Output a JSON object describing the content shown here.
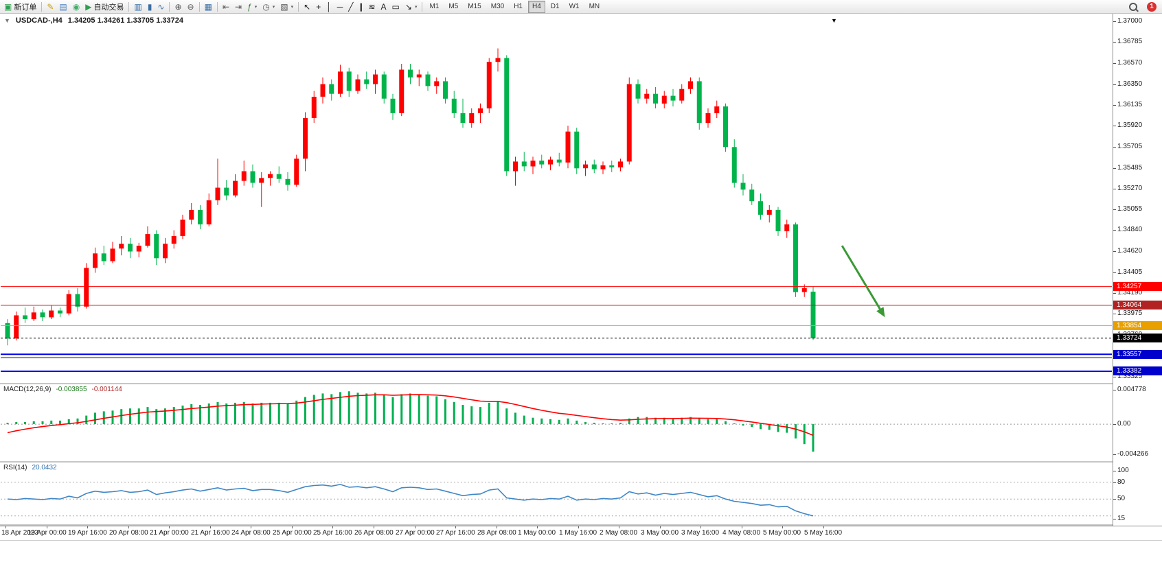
{
  "toolbar": {
    "groups": [
      {
        "items": [
          {
            "name": "new-order-button",
            "glyph": "▣",
            "glyph_color": "#2e9e4f",
            "label": "新订单"
          }
        ]
      },
      {
        "items": [
          {
            "name": "metaeditor-button",
            "glyph": "✎",
            "glyph_color": "#c8a400"
          },
          {
            "name": "data-window-button",
            "glyph": "▤",
            "glyph_color": "#4a7fc0"
          },
          {
            "name": "navigator-button",
            "glyph": "◉",
            "glyph_color": "#3fae6a"
          },
          {
            "name": "autotrading-button",
            "glyph": "▶",
            "glyph_color": "#2e9e4f",
            "label": "自动交易"
          }
        ]
      },
      {
        "items": [
          {
            "name": "bar-chart-button",
            "glyph": "▥",
            "glyph_color": "#3a6ea5"
          },
          {
            "name": "candlestick-chart-button",
            "glyph": "▮",
            "glyph_color": "#3a6ea5"
          },
          {
            "name": "line-chart-button",
            "glyph": "∿",
            "glyph_color": "#3a6ea5"
          }
        ]
      },
      {
        "items": [
          {
            "name": "zoom-in-button",
            "glyph": "⊕",
            "glyph_color": "#555555"
          },
          {
            "name": "zoom-out-button",
            "glyph": "⊖",
            "glyph_color": "#555555"
          }
        ]
      },
      {
        "items": [
          {
            "name": "tile-windows-button",
            "glyph": "▦",
            "glyph_color": "#3a6ea5"
          }
        ]
      },
      {
        "items": [
          {
            "name": "auto-scroll-button",
            "glyph": "⇤",
            "glyph_color": "#555555"
          },
          {
            "name": "chart-shift-button",
            "glyph": "⇥",
            "glyph_color": "#555555"
          },
          {
            "name": "indicators-button",
            "glyph": "ƒ",
            "glyph_color": "#2e7d32",
            "dropdown": true
          },
          {
            "name": "periods-button",
            "glyph": "◷",
            "glyph_color": "#555555",
            "dropdown": true
          },
          {
            "name": "templates-button",
            "glyph": "▧",
            "glyph_color": "#555555",
            "dropdown": true
          }
        ]
      },
      {
        "items": [
          {
            "name": "cursor-button",
            "glyph": "↖",
            "glyph_color": "#222222"
          },
          {
            "name": "crosshair-button",
            "glyph": "+",
            "glyph_color": "#222222"
          },
          {
            "name": "vertical-line-button",
            "glyph": "│",
            "glyph_color": "#222222"
          },
          {
            "name": "horizontal-line-button",
            "glyph": "─",
            "glyph_color": "#222222"
          },
          {
            "name": "trendline-button",
            "glyph": "╱",
            "glyph_color": "#222222"
          },
          {
            "name": "channel-button",
            "glyph": "∥",
            "glyph_color": "#222222"
          },
          {
            "name": "fibonacci-button",
            "glyph": "≋",
            "glyph_color": "#222222"
          },
          {
            "name": "text-button",
            "glyph": "A",
            "glyph_color": "#222222"
          },
          {
            "name": "text-label-button",
            "glyph": "▭",
            "glyph_color": "#222222"
          },
          {
            "name": "arrows-button",
            "glyph": "↘",
            "glyph_color": "#222222",
            "dropdown": true
          }
        ]
      }
    ],
    "timeframes": {
      "items": [
        "M1",
        "M5",
        "M15",
        "M30",
        "H1",
        "H4",
        "D1",
        "W1",
        "MN"
      ],
      "active": "H4"
    },
    "badge": "1"
  },
  "chart": {
    "symbol_label": "USDCAD-,H4",
    "ohlc_label": "1.34205 1.34261 1.33705 1.33724",
    "open": "1.34205",
    "high": "1.34261",
    "low": "1.33705",
    "close": "1.33724"
  },
  "chart_data": {
    "type": "candlestick",
    "symbol": "USDCAD",
    "timeframe": "H4",
    "colors": {
      "up": "#ff0000",
      "down": "#00b44c"
    },
    "price_axis": {
      "min": 1.33261,
      "max": 1.37078,
      "ticks": [
        "1.37000",
        "1.36785",
        "1.36570",
        "1.36350",
        "1.36135",
        "1.35920",
        "1.35705",
        "1.35485",
        "1.35270",
        "1.35055",
        "1.34840",
        "1.34620",
        "1.34405",
        "1.34190",
        "1.33975",
        "1.33760",
        "1.33545",
        "1.33325"
      ]
    },
    "time_labels": [
      "18 Apr 2023",
      "19 Apr 00:00",
      "19 Apr 16:00",
      "20 Apr 08:00",
      "21 Apr 00:00",
      "21 Apr 16:00",
      "24 Apr 08:00",
      "25 Apr 00:00",
      "25 Apr 16:00",
      "26 Apr 08:00",
      "27 Apr 00:00",
      "27 Apr 16:00",
      "28 Apr 08:00",
      "1 May 00:00",
      "1 May 16:00",
      "2 May 08:00",
      "3 May 00:00",
      "3 May 16:00",
      "4 May 08:00",
      "5 May 00:00",
      "5 May 16:00"
    ],
    "candles": [
      [
        1.3388,
        1.3392,
        1.3365,
        1.3372
      ],
      [
        1.3372,
        1.34,
        1.337,
        1.3396
      ],
      [
        1.3396,
        1.3404,
        1.3388,
        1.3392
      ],
      [
        1.3392,
        1.3405,
        1.339,
        1.3399
      ],
      [
        1.3399,
        1.3402,
        1.339,
        1.3394
      ],
      [
        1.3394,
        1.3406,
        1.3392,
        1.3401
      ],
      [
        1.3401,
        1.3404,
        1.3394,
        1.3398
      ],
      [
        1.3398,
        1.3422,
        1.3396,
        1.3418
      ],
      [
        1.3418,
        1.3424,
        1.34,
        1.3405
      ],
      [
        1.3405,
        1.345,
        1.3403,
        1.3445
      ],
      [
        1.3445,
        1.3466,
        1.344,
        1.346
      ],
      [
        1.346,
        1.3468,
        1.3448,
        1.3452
      ],
      [
        1.3452,
        1.3472,
        1.345,
        1.3465
      ],
      [
        1.3465,
        1.3478,
        1.3458,
        1.347
      ],
      [
        1.347,
        1.3476,
        1.3455,
        1.3462
      ],
      [
        1.3462,
        1.3471,
        1.3456,
        1.3468
      ],
      [
        1.3468,
        1.3488,
        1.3466,
        1.348
      ],
      [
        1.348,
        1.3484,
        1.3448,
        1.3455
      ],
      [
        1.3455,
        1.3476,
        1.345,
        1.347
      ],
      [
        1.347,
        1.3484,
        1.3465,
        1.3478
      ],
      [
        1.3478,
        1.35,
        1.3475,
        1.3495
      ],
      [
        1.3495,
        1.3512,
        1.349,
        1.3505
      ],
      [
        1.3505,
        1.351,
        1.3485,
        1.349
      ],
      [
        1.349,
        1.3522,
        1.3488,
        1.3515
      ],
      [
        1.3515,
        1.3558,
        1.351,
        1.3528
      ],
      [
        1.3528,
        1.3536,
        1.3515,
        1.352
      ],
      [
        1.352,
        1.3542,
        1.3518,
        1.3535
      ],
      [
        1.3535,
        1.3556,
        1.353,
        1.3545
      ],
      [
        1.3545,
        1.3552,
        1.3528,
        1.3533
      ],
      [
        1.3533,
        1.3544,
        1.3508,
        1.3538
      ],
      [
        1.3538,
        1.3545,
        1.353,
        1.3542
      ],
      [
        1.3542,
        1.355,
        1.3533,
        1.3537
      ],
      [
        1.3537,
        1.3544,
        1.3525,
        1.3531
      ],
      [
        1.3531,
        1.3562,
        1.3529,
        1.3558
      ],
      [
        1.3558,
        1.3606,
        1.3545,
        1.36
      ],
      [
        1.36,
        1.3628,
        1.3595,
        1.3622
      ],
      [
        1.3622,
        1.3642,
        1.3615,
        1.3635
      ],
      [
        1.3635,
        1.364,
        1.3618,
        1.3625
      ],
      [
        1.3625,
        1.3655,
        1.3622,
        1.3648
      ],
      [
        1.3648,
        1.3652,
        1.3622,
        1.3628
      ],
      [
        1.3628,
        1.3645,
        1.3625,
        1.364
      ],
      [
        1.364,
        1.3648,
        1.363,
        1.3635
      ],
      [
        1.3635,
        1.365,
        1.3625,
        1.3645
      ],
      [
        1.3645,
        1.3648,
        1.3615,
        1.362
      ],
      [
        1.362,
        1.3625,
        1.3598,
        1.3605
      ],
      [
        1.3605,
        1.3656,
        1.3602,
        1.365
      ],
      [
        1.365,
        1.3656,
        1.3635,
        1.3642
      ],
      [
        1.3642,
        1.365,
        1.3633,
        1.3645
      ],
      [
        1.3645,
        1.3648,
        1.3628,
        1.3633
      ],
      [
        1.3633,
        1.3642,
        1.3625,
        1.3638
      ],
      [
        1.3638,
        1.3642,
        1.3615,
        1.362
      ],
      [
        1.362,
        1.3628,
        1.36,
        1.3605
      ],
      [
        1.3605,
        1.362,
        1.359,
        1.3595
      ],
      [
        1.3595,
        1.361,
        1.359,
        1.3605
      ],
      [
        1.3605,
        1.3615,
        1.3595,
        1.361
      ],
      [
        1.361,
        1.3662,
        1.3605,
        1.3658
      ],
      [
        1.3658,
        1.3672,
        1.3648,
        1.3662
      ],
      [
        1.3662,
        1.3665,
        1.354,
        1.3545
      ],
      [
        1.3545,
        1.356,
        1.353,
        1.3555
      ],
      [
        1.3555,
        1.3565,
        1.3545,
        1.355
      ],
      [
        1.355,
        1.356,
        1.3542,
        1.3556
      ],
      [
        1.3556,
        1.3562,
        1.3548,
        1.3552
      ],
      [
        1.3552,
        1.356,
        1.3546,
        1.3557
      ],
      [
        1.3557,
        1.3564,
        1.355,
        1.3554
      ],
      [
        1.3554,
        1.3592,
        1.3548,
        1.3586
      ],
      [
        1.3586,
        1.359,
        1.3542,
        1.3548
      ],
      [
        1.3548,
        1.3556,
        1.354,
        1.3552
      ],
      [
        1.3552,
        1.3557,
        1.3543,
        1.3547
      ],
      [
        1.3547,
        1.3555,
        1.3542,
        1.3551
      ],
      [
        1.3551,
        1.3556,
        1.3544,
        1.3549
      ],
      [
        1.3549,
        1.3558,
        1.3545,
        1.3555
      ],
      [
        1.3555,
        1.3642,
        1.3552,
        1.3635
      ],
      [
        1.3635,
        1.364,
        1.3615,
        1.362
      ],
      [
        1.362,
        1.363,
        1.3615,
        1.3625
      ],
      [
        1.3625,
        1.3632,
        1.361,
        1.3615
      ],
      [
        1.3615,
        1.3628,
        1.361,
        1.3623
      ],
      [
        1.3623,
        1.363,
        1.3612,
        1.3618
      ],
      [
        1.3618,
        1.3635,
        1.3615,
        1.363
      ],
      [
        1.363,
        1.3642,
        1.3625,
        1.3638
      ],
      [
        1.3638,
        1.3642,
        1.3588,
        1.3595
      ],
      [
        1.3595,
        1.361,
        1.359,
        1.3605
      ],
      [
        1.3605,
        1.3618,
        1.36,
        1.3612
      ],
      [
        1.3612,
        1.3615,
        1.3565,
        1.357
      ],
      [
        1.357,
        1.3578,
        1.3528,
        1.3533
      ],
      [
        1.3533,
        1.3542,
        1.352,
        1.3526
      ],
      [
        1.3526,
        1.3532,
        1.351,
        1.3514
      ],
      [
        1.3514,
        1.3522,
        1.3495,
        1.35
      ],
      [
        1.35,
        1.351,
        1.3492,
        1.3505
      ],
      [
        1.3505,
        1.3508,
        1.3478,
        1.3483
      ],
      [
        1.3483,
        1.3495,
        1.3476,
        1.349
      ],
      [
        1.349,
        1.3492,
        1.3415,
        1.342
      ],
      [
        1.342,
        1.3428,
        1.3415,
        1.3424
      ],
      [
        1.34205,
        1.34261,
        1.33705,
        1.33724
      ]
    ],
    "hlines": [
      {
        "price": 1.34257,
        "color": "#ff0000",
        "width": 1,
        "label": "1.34257",
        "label_bg": "#ff0000"
      },
      {
        "price": 1.34064,
        "color": "#b22222",
        "width": 1,
        "label": "1.34064",
        "label_bg": "#b22222"
      },
      {
        "price": 1.33854,
        "color": "#f0a500",
        "width": 1,
        "label": "1.33854",
        "label_bg": "#e8a000"
      },
      {
        "price": 1.33724,
        "color": "#000000",
        "width": 1,
        "dashed": true,
        "label": "1.33724",
        "label_bg": "#000000"
      },
      {
        "price": 1.3352,
        "color": "#000000",
        "width": 1
      },
      {
        "price": 1.33557,
        "color": "#0000ee",
        "width": 2,
        "label": "1.33557",
        "label_bg": "#0000cd"
      },
      {
        "price": 1.33382,
        "color": "#0000ee",
        "width": 2,
        "label": "1.33382",
        "label_bg": "#0000cd"
      }
    ],
    "arrow": {
      "bar1": 95.3,
      "price1": 1.3468,
      "bar2": 100.2,
      "price2": 1.3394,
      "color": "#3a9a35"
    },
    "macd": {
      "label": "MACD(12,26,9)",
      "value_main": "-0.003855",
      "value_signal": "-0.001144",
      "hist_color": "#00b050",
      "signal_color": "#ff0000",
      "signal_seed": -0.0015,
      "axis": [
        {
          "v": 0.004778,
          "t": "0.004778"
        },
        {
          "v": 0,
          "t": "0.00"
        },
        {
          "v": -0.004266,
          "t": "-0.004266"
        }
      ],
      "histogram": [
        0.0002,
        0.0003,
        0.0003,
        0.0004,
        0.0004,
        0.0005,
        0.0005,
        0.0007,
        0.0008,
        0.0012,
        0.0016,
        0.0018,
        0.0019,
        0.0021,
        0.0022,
        0.0022,
        0.0024,
        0.0021,
        0.0022,
        0.0024,
        0.0026,
        0.0028,
        0.0027,
        0.0029,
        0.0031,
        0.0029,
        0.003,
        0.0031,
        0.0029,
        0.003,
        0.003,
        0.003,
        0.0029,
        0.0033,
        0.0038,
        0.0041,
        0.0043,
        0.0042,
        0.0045,
        0.0046,
        0.0044,
        0.0043,
        0.0044,
        0.0041,
        0.0038,
        0.0042,
        0.0043,
        0.0042,
        0.004,
        0.0039,
        0.0035,
        0.0031,
        0.0027,
        0.0025,
        0.0024,
        0.003,
        0.0032,
        0.0022,
        0.0016,
        0.0012,
        0.0009,
        0.0008,
        0.0007,
        0.0006,
        0.0008,
        0.0005,
        0.0003,
        0.0002,
        0.0001,
        0.0001,
        0.0002,
        0.0008,
        0.001,
        0.001,
        0.0009,
        0.0009,
        0.0008,
        0.0009,
        0.001,
        0.0008,
        0.0007,
        0.0007,
        0.0004,
        0.0001,
        -0.0002,
        -0.0004,
        -0.0007,
        -0.0008,
        -0.0011,
        -0.0012,
        -0.002,
        -0.0028,
        -0.003855
      ]
    },
    "rsi": {
      "label": "RSI(14)",
      "value_label": "20.0432",
      "color": "#3e86c6",
      "levels": [
        80,
        50,
        20
      ],
      "axis": [
        {
          "v": 100,
          "t": "100"
        },
        {
          "v": 80,
          "t": "80"
        },
        {
          "v": 50,
          "t": "50"
        },
        {
          "v": 15,
          "t": "15"
        }
      ],
      "values": [
        50,
        49,
        51,
        50,
        49,
        51,
        50,
        55,
        52,
        60,
        64,
        62,
        63,
        65,
        62,
        63,
        66,
        58,
        61,
        63,
        66,
        68,
        64,
        67,
        70,
        66,
        68,
        69,
        65,
        67,
        67,
        65,
        62,
        67,
        72,
        74,
        75,
        73,
        76,
        71,
        72,
        70,
        72,
        68,
        63,
        70,
        71,
        70,
        67,
        68,
        64,
        60,
        56,
        58,
        59,
        66,
        68,
        52,
        50,
        48,
        50,
        49,
        51,
        50,
        55,
        48,
        50,
        49,
        51,
        50,
        52,
        63,
        59,
        61,
        57,
        60,
        58,
        60,
        62,
        58,
        54,
        56,
        50,
        46,
        44,
        42,
        39,
        40,
        36,
        37,
        29,
        24,
        20.0432
      ]
    }
  }
}
